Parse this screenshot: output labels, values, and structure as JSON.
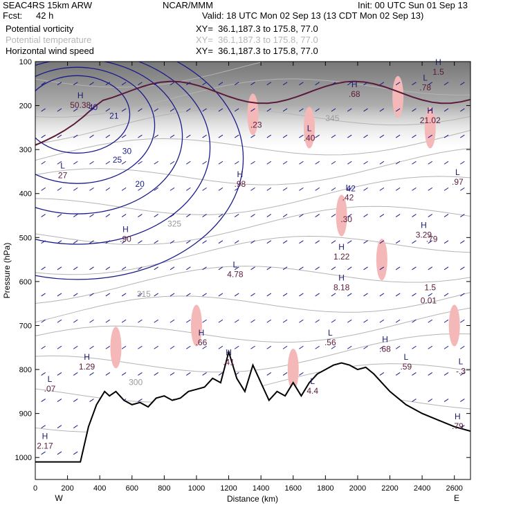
{
  "header": {
    "model": "SEAC4RS 15km ARW",
    "org": "NCAR/MMM",
    "init": "Init: 00 UTC Sun 01 Sep 13",
    "fcst_label": "Fcst:",
    "fcst_value": "42 h",
    "valid": "Valid: 18 UTC Mon 02 Sep 13 (13 CDT Mon 02 Sep 13)"
  },
  "legend": [
    {
      "name": "Potential vorticity",
      "xy": "XY=  36.1,187.3 to 175.8, 77.0",
      "color": "#000000"
    },
    {
      "name": "Potential temperature",
      "xy": "XY=  36.1,187.3 to 175.8, 77.0",
      "color": "#b4b4b4"
    },
    {
      "name": "Horizontal wind speed",
      "xy": "XY=  36.1,187.3 to 175.8, 77.0",
      "color": "#000000"
    }
  ],
  "chart_data": {
    "type": "cross-section",
    "xlabel": "Distance (km)",
    "ylabel": "Pressure (hPa)",
    "xlim": [
      0,
      2700
    ],
    "ylim": [
      1050,
      100
    ],
    "x_ticks": [
      0,
      200,
      400,
      600,
      800,
      1000,
      1200,
      1400,
      1600,
      1800,
      2000,
      2200,
      2400,
      2600
    ],
    "y_ticks": [
      100,
      200,
      300,
      400,
      500,
      600,
      700,
      800,
      900,
      1000
    ],
    "left_end_label": "W",
    "right_end_label": "E",
    "terrain_pressure": [
      [
        0,
        1010
      ],
      [
        200,
        1010
      ],
      [
        280,
        1010
      ],
      [
        330,
        930
      ],
      [
        380,
        880
      ],
      [
        430,
        850
      ],
      [
        460,
        860
      ],
      [
        500,
        850
      ],
      [
        550,
        870
      ],
      [
        600,
        880
      ],
      [
        650,
        875
      ],
      [
        700,
        885
      ],
      [
        750,
        865
      ],
      [
        800,
        860
      ],
      [
        850,
        870
      ],
      [
        900,
        865
      ],
      [
        950,
        850
      ],
      [
        1000,
        845
      ],
      [
        1050,
        840
      ],
      [
        1100,
        820
      ],
      [
        1150,
        830
      ],
      [
        1200,
        760
      ],
      [
        1250,
        820
      ],
      [
        1300,
        850
      ],
      [
        1350,
        790
      ],
      [
        1400,
        830
      ],
      [
        1450,
        870
      ],
      [
        1500,
        850
      ],
      [
        1550,
        860
      ],
      [
        1600,
        830
      ],
      [
        1650,
        860
      ],
      [
        1700,
        830
      ],
      [
        1750,
        810
      ],
      [
        1800,
        800
      ],
      [
        1850,
        790
      ],
      [
        1900,
        785
      ],
      [
        1950,
        790
      ],
      [
        2000,
        800
      ],
      [
        2050,
        795
      ],
      [
        2100,
        810
      ],
      [
        2200,
        850
      ],
      [
        2300,
        880
      ],
      [
        2400,
        900
      ],
      [
        2500,
        915
      ],
      [
        2600,
        930
      ],
      [
        2700,
        940
      ]
    ],
    "wind_speed_contours": [
      "20",
      "21",
      "25",
      "30",
      "40",
      "42"
    ],
    "theta_contours": [
      "300",
      "315",
      "325",
      "345"
    ],
    "extrema": [
      {
        "type": "H",
        "value": "50.38",
        "x": 280,
        "p": 205
      },
      {
        "type": "L",
        "value": "27",
        "x": 170,
        "p": 365
      },
      {
        "type": "H",
        "value": ".90",
        "x": 560,
        "p": 510
      },
      {
        "type": "H",
        "value": ".98",
        "x": 1270,
        "p": 385
      },
      {
        "type": "L",
        "value": "4.78",
        "x": 1240,
        "p": 590
      },
      {
        "type": "L",
        "value": ".40",
        "x": 1700,
        "p": 280
      },
      {
        "type": "L",
        "value": ".42",
        "x": 1940,
        "p": 415
      },
      {
        "type": "H",
        "value": "1.22",
        "x": 1900,
        "p": 550
      },
      {
        "type": "H",
        "value": "8.18",
        "x": 1900,
        "p": 620
      },
      {
        "type": "H",
        "value": "3.29",
        "x": 2410,
        "p": 500
      },
      {
        "type": "H",
        "value": ".68",
        "x": 1980,
        "p": 180
      },
      {
        "type": "L",
        "value": ".78",
        "x": 2420,
        "p": 165
      },
      {
        "type": "H",
        "value": "21.02",
        "x": 2450,
        "p": 240
      },
      {
        "type": "L",
        "value": ".97",
        "x": 2620,
        "p": 380
      },
      {
        "type": "H",
        "value": "1.29",
        "x": 320,
        "p": 800
      },
      {
        "type": "L",
        "value": ".07",
        "x": 90,
        "p": 850
      },
      {
        "type": "H",
        "value": "2.17",
        "x": 60,
        "p": 980
      },
      {
        "type": "H",
        "value": ".66",
        "x": 1030,
        "p": 745
      },
      {
        "type": "H",
        "value": ".41",
        "x": 1200,
        "p": 790
      },
      {
        "type": "L",
        "value": ".56",
        "x": 1830,
        "p": 745
      },
      {
        "type": "H",
        "value": ".68",
        "x": 2170,
        "p": 760
      },
      {
        "type": "L",
        "value": ".59",
        "x": 2300,
        "p": 800
      },
      {
        "type": "L",
        "value": "-.3",
        "x": 2640,
        "p": 810
      },
      {
        "type": "H",
        "value": ".79",
        "x": 2620,
        "p": 935
      },
      {
        "type": "H",
        "value": "1.5",
        "x": 2500,
        "p": 130
      },
      {
        "type": "L",
        "value": "4.4",
        "x": 1720,
        "p": 855
      },
      {
        "type": "",
        "value": "0.01",
        "x": 2440,
        "p": 650
      },
      {
        "type": "",
        "value": ".23",
        "x": 1370,
        "p": 250
      },
      {
        "type": "",
        "value": ".30",
        "x": 1930,
        "p": 465
      },
      {
        "type": "",
        "value": ".79",
        "x": 2460,
        "p": 510
      },
      {
        "type": "",
        "value": "1.5",
        "x": 2450,
        "p": 620
      }
    ]
  }
}
